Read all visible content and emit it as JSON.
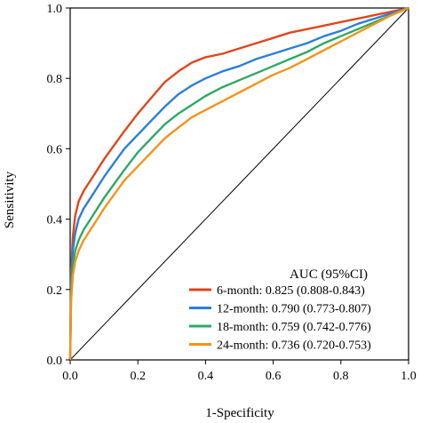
{
  "chart_data": {
    "type": "line",
    "xlabel": "1-Specificity",
    "ylabel": "Sensitivity",
    "xlim": [
      0,
      1
    ],
    "ylim": [
      0,
      1
    ],
    "xticks": [
      "0.0",
      "0.2",
      "0.4",
      "0.6",
      "0.8",
      "1.0"
    ],
    "yticks": [
      "0.0",
      "0.2",
      "0.4",
      "0.6",
      "0.8",
      "1.0"
    ],
    "grid": false,
    "legend": {
      "placement": "bottom-right",
      "title": "AUC (95%CI)",
      "entries": [
        "6-month: 0.825 (0.808-0.843)",
        "12-month: 0.790 (0.773-0.807)",
        "18-month: 0.759 (0.742-0.776)",
        "24-month: 0.736 (0.720-0.753)"
      ]
    },
    "reference_line": {
      "x": [
        0,
        1
      ],
      "y": [
        0,
        1
      ],
      "color": "#000000"
    },
    "series": [
      {
        "color": "#e0461e",
        "x": [
          0,
          0.003,
          0.008,
          0.015,
          0.025,
          0.04,
          0.06,
          0.08,
          0.1,
          0.13,
          0.16,
          0.2,
          0.24,
          0.28,
          0.32,
          0.36,
          0.4,
          0.45,
          0.5,
          0.55,
          0.6,
          0.65,
          0.7,
          0.75,
          0.8,
          0.85,
          0.9,
          0.95,
          1.0
        ],
        "y": [
          0,
          0.25,
          0.35,
          0.41,
          0.45,
          0.48,
          0.51,
          0.54,
          0.57,
          0.61,
          0.65,
          0.7,
          0.745,
          0.79,
          0.82,
          0.845,
          0.86,
          0.87,
          0.885,
          0.9,
          0.915,
          0.93,
          0.94,
          0.95,
          0.96,
          0.97,
          0.98,
          0.99,
          1.0
        ]
      },
      {
        "color": "#2a7fd8",
        "x": [
          0,
          0.003,
          0.008,
          0.015,
          0.025,
          0.04,
          0.06,
          0.08,
          0.1,
          0.13,
          0.16,
          0.2,
          0.24,
          0.28,
          0.32,
          0.36,
          0.4,
          0.45,
          0.5,
          0.55,
          0.6,
          0.65,
          0.7,
          0.75,
          0.8,
          0.85,
          0.9,
          0.95,
          1.0
        ],
        "y": [
          0,
          0.22,
          0.31,
          0.36,
          0.4,
          0.43,
          0.46,
          0.49,
          0.52,
          0.56,
          0.6,
          0.64,
          0.68,
          0.72,
          0.755,
          0.78,
          0.8,
          0.82,
          0.835,
          0.855,
          0.87,
          0.885,
          0.9,
          0.92,
          0.935,
          0.955,
          0.97,
          0.985,
          1.0
        ]
      },
      {
        "color": "#2fa866",
        "x": [
          0,
          0.003,
          0.008,
          0.015,
          0.025,
          0.04,
          0.06,
          0.08,
          0.1,
          0.13,
          0.16,
          0.2,
          0.24,
          0.28,
          0.32,
          0.36,
          0.4,
          0.45,
          0.5,
          0.55,
          0.6,
          0.65,
          0.7,
          0.75,
          0.8,
          0.85,
          0.9,
          0.95,
          1.0
        ],
        "y": [
          0,
          0.19,
          0.27,
          0.31,
          0.34,
          0.37,
          0.4,
          0.43,
          0.46,
          0.5,
          0.54,
          0.59,
          0.63,
          0.67,
          0.7,
          0.725,
          0.75,
          0.775,
          0.795,
          0.815,
          0.835,
          0.855,
          0.875,
          0.9,
          0.92,
          0.94,
          0.96,
          0.98,
          1.0
        ]
      },
      {
        "color": "#f29419",
        "x": [
          0,
          0.003,
          0.008,
          0.015,
          0.025,
          0.04,
          0.06,
          0.08,
          0.1,
          0.13,
          0.16,
          0.2,
          0.24,
          0.28,
          0.32,
          0.36,
          0.4,
          0.45,
          0.5,
          0.55,
          0.6,
          0.65,
          0.7,
          0.75,
          0.8,
          0.85,
          0.9,
          0.95,
          1.0
        ],
        "y": [
          0,
          0.17,
          0.24,
          0.28,
          0.31,
          0.34,
          0.37,
          0.4,
          0.43,
          0.47,
          0.51,
          0.55,
          0.59,
          0.63,
          0.66,
          0.69,
          0.71,
          0.735,
          0.76,
          0.785,
          0.81,
          0.83,
          0.855,
          0.88,
          0.905,
          0.93,
          0.955,
          0.98,
          1.0
        ]
      }
    ]
  }
}
